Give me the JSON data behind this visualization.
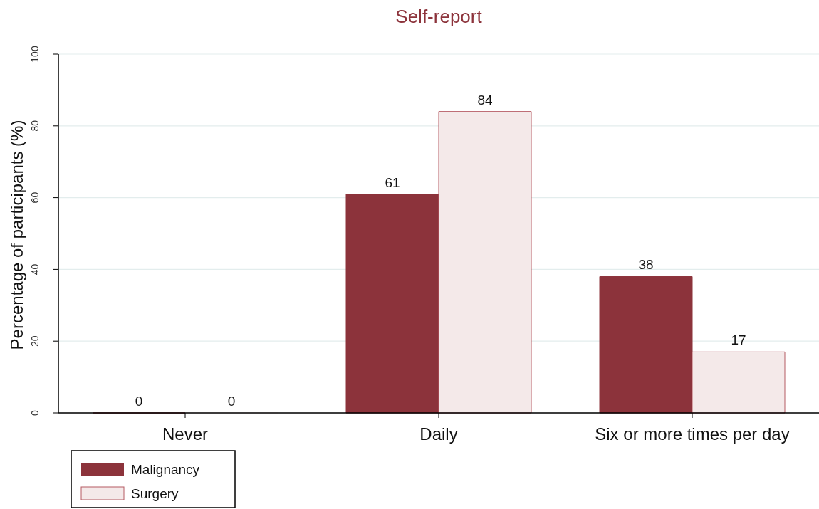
{
  "chart_data": {
    "type": "bar",
    "title": "Self-report",
    "ylabel": "Percentage of participants (%)",
    "categories": [
      "Never",
      "Daily",
      "Six or more times per day"
    ],
    "series": [
      {
        "name": "Malignancy",
        "color": "#8c333b",
        "values": [
          0,
          61,
          38
        ]
      },
      {
        "name": "Surgery",
        "color": "#f4e9e9",
        "values": [
          0,
          84,
          17
        ]
      }
    ],
    "ylim": [
      0,
      100
    ],
    "yticks": [
      0,
      20,
      40,
      60,
      80,
      100
    ],
    "grid": "y",
    "legend": "bottom left",
    "data_labels": true
  }
}
